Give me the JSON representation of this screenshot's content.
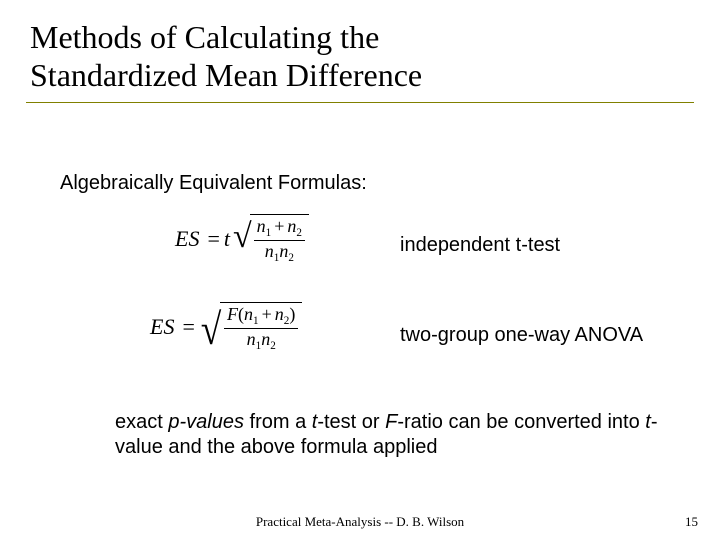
{
  "title_line1": "Methods of Calculating the",
  "title_line2": "Standardized Mean Difference",
  "subhead": "Algebraically Equivalent Formulas:",
  "formula1": {
    "lhs": "ES",
    "t": "t",
    "num_a": "n",
    "num_a_sub": "1",
    "num_b": "n",
    "num_b_sub": "2",
    "den_a": "n",
    "den_a_sub": "1",
    "den_b": "n",
    "den_b_sub": "2",
    "label": "independent t-test"
  },
  "formula2": {
    "lhs": "ES",
    "F": "F",
    "num_a": "n",
    "num_a_sub": "1",
    "num_b": "n",
    "num_b_sub": "2",
    "den_a": "n",
    "den_a_sub": "1",
    "den_b": "n",
    "den_b_sub": "2",
    "label": "two-group one-way ANOVA"
  },
  "body": {
    "pre": "exact ",
    "pvals": "p-values",
    "mid1": "  from a ",
    "t": "t",
    "mid2": "-test or ",
    "F": "F",
    "mid3": "-ratio can be converted into ",
    "t2": "t",
    "post": "-value and the above formula applied"
  },
  "footer": "Practical Meta-Analysis -- D. B. Wilson",
  "page": "15",
  "colors": {
    "rule": "#808000"
  }
}
